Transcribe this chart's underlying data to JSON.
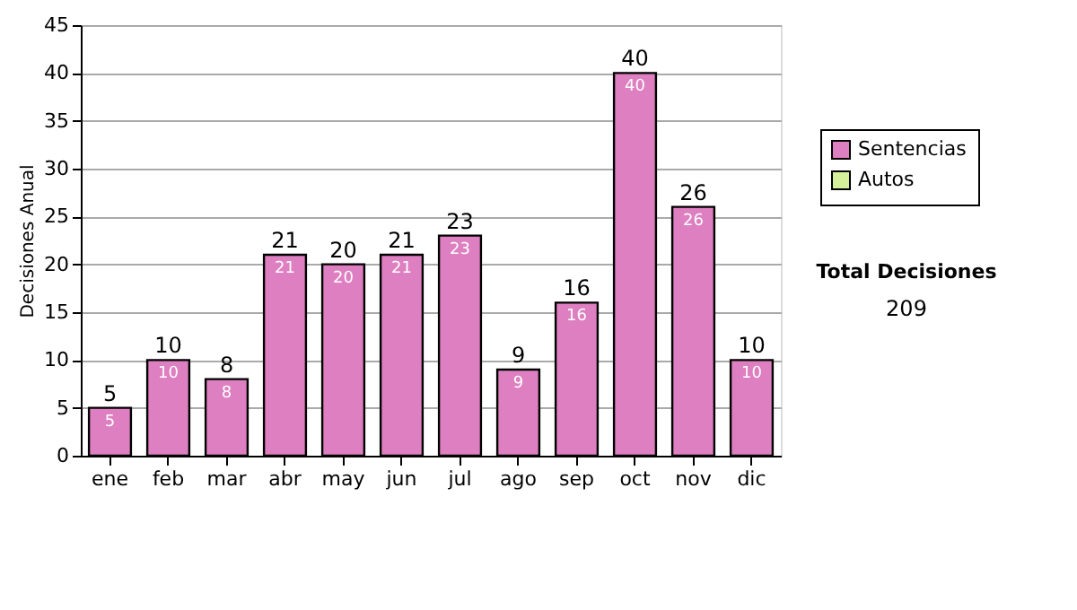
{
  "chart_data": {
    "type": "bar",
    "ylabel": "Decisiones Anual",
    "categories": [
      "ene",
      "feb",
      "mar",
      "abr",
      "may",
      "jun",
      "jul",
      "ago",
      "sep",
      "oct",
      "nov",
      "dic"
    ],
    "series": [
      {
        "name": "Sentencias",
        "color": "#dd7fc0",
        "values": [
          5,
          10,
          8,
          21,
          20,
          21,
          23,
          9,
          16,
          40,
          26,
          10
        ]
      },
      {
        "name": "Autos",
        "color": "#d6ef9b",
        "values": [
          null,
          null,
          null,
          null,
          null,
          null,
          null,
          null,
          null,
          null,
          null,
          null
        ]
      }
    ],
    "data_labels": true,
    "totals": [
      "5",
      "10",
      "8",
      "21",
      "20",
      "21",
      "23",
      "9",
      "16",
      "40",
      "26",
      "10"
    ],
    "ylim": [
      0,
      45
    ],
    "yticks": [
      0,
      5,
      10,
      15,
      20,
      25,
      30,
      35,
      40,
      45
    ],
    "grid": "y",
    "legend": "top right",
    "annotations": [
      "Total Decisiones",
      "209"
    ]
  }
}
